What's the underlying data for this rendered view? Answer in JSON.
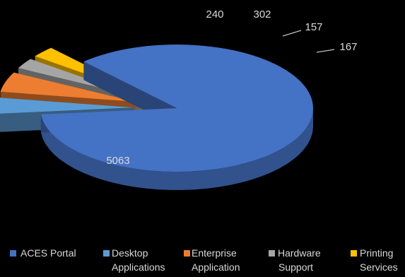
{
  "colors": {
    "background": "#000000",
    "label_text": "#d9d9d9",
    "slices": [
      "#4472c4",
      "#5b9bd5",
      "#ed7d31",
      "#a5a5a5",
      "#ffc000"
    ]
  },
  "legend": {
    "items": [
      {
        "line1": "ACES Portal",
        "line2": ""
      },
      {
        "line1": "Desktop",
        "line2": "Applications"
      },
      {
        "line1": "Enterprise",
        "line2": "Application"
      },
      {
        "line1": "Hardware",
        "line2": "Support"
      },
      {
        "line1": "Printing",
        "line2": "Services"
      }
    ]
  },
  "chart_data": {
    "type": "pie",
    "style": "3d-exploded",
    "legend_position": "bottom",
    "categories": [
      "ACES Portal",
      "Desktop Applications",
      "Enterprise Application",
      "Hardware Support",
      "Printing Services"
    ],
    "values": [
      5063,
      240,
      302,
      157,
      167
    ],
    "data_labels": [
      "5063",
      "240",
      "302",
      "157",
      "167"
    ]
  }
}
